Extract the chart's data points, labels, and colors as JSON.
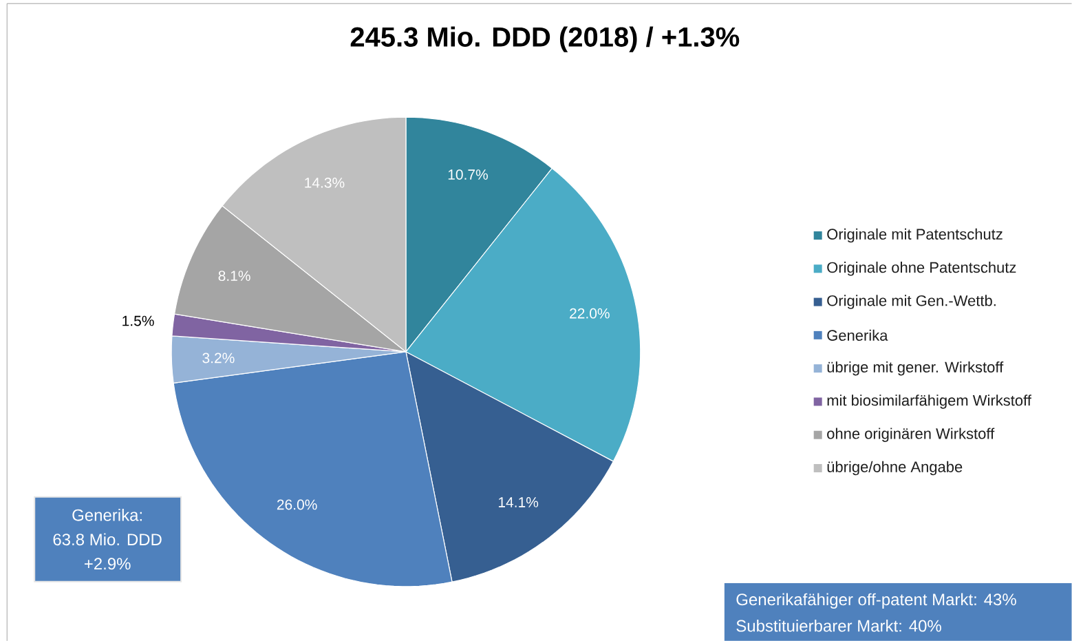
{
  "chart_data": {
    "type": "pie",
    "title": "245.3 Mio. DDD (2018) / +1.3%",
    "categories": [
      "Originale mit Patentschutz",
      "Originale ohne Patentschutz",
      "Originale mit Gen.-Wettb.",
      "Generika",
      "übrige mit gener. Wirkstoff",
      "mit biosimilarfähigem Wirkstoff",
      "ohne originären Wirkstoff",
      "übrige/ohne Angabe"
    ],
    "values": [
      10.7,
      22.0,
      14.1,
      26.0,
      3.2,
      1.5,
      8.1,
      14.3
    ],
    "colors": [
      "#31859c",
      "#4bacc6",
      "#365f91",
      "#4f81bd",
      "#95b3d7",
      "#8064a2",
      "#a5a5a5",
      "#bfbfbf"
    ],
    "value_labels": [
      "10.7%",
      "22.0%",
      "14.1%",
      "26.0%",
      "3.2%",
      "1.5%",
      "8.1%",
      "14.3%"
    ],
    "legend": "right",
    "annotations": [
      "Generika:",
      "63.8 Mio. DDD",
      "+2.9%",
      "Generikafähiger off-patent Markt: 43%",
      "Substituierbarer Markt: 40%"
    ]
  }
}
